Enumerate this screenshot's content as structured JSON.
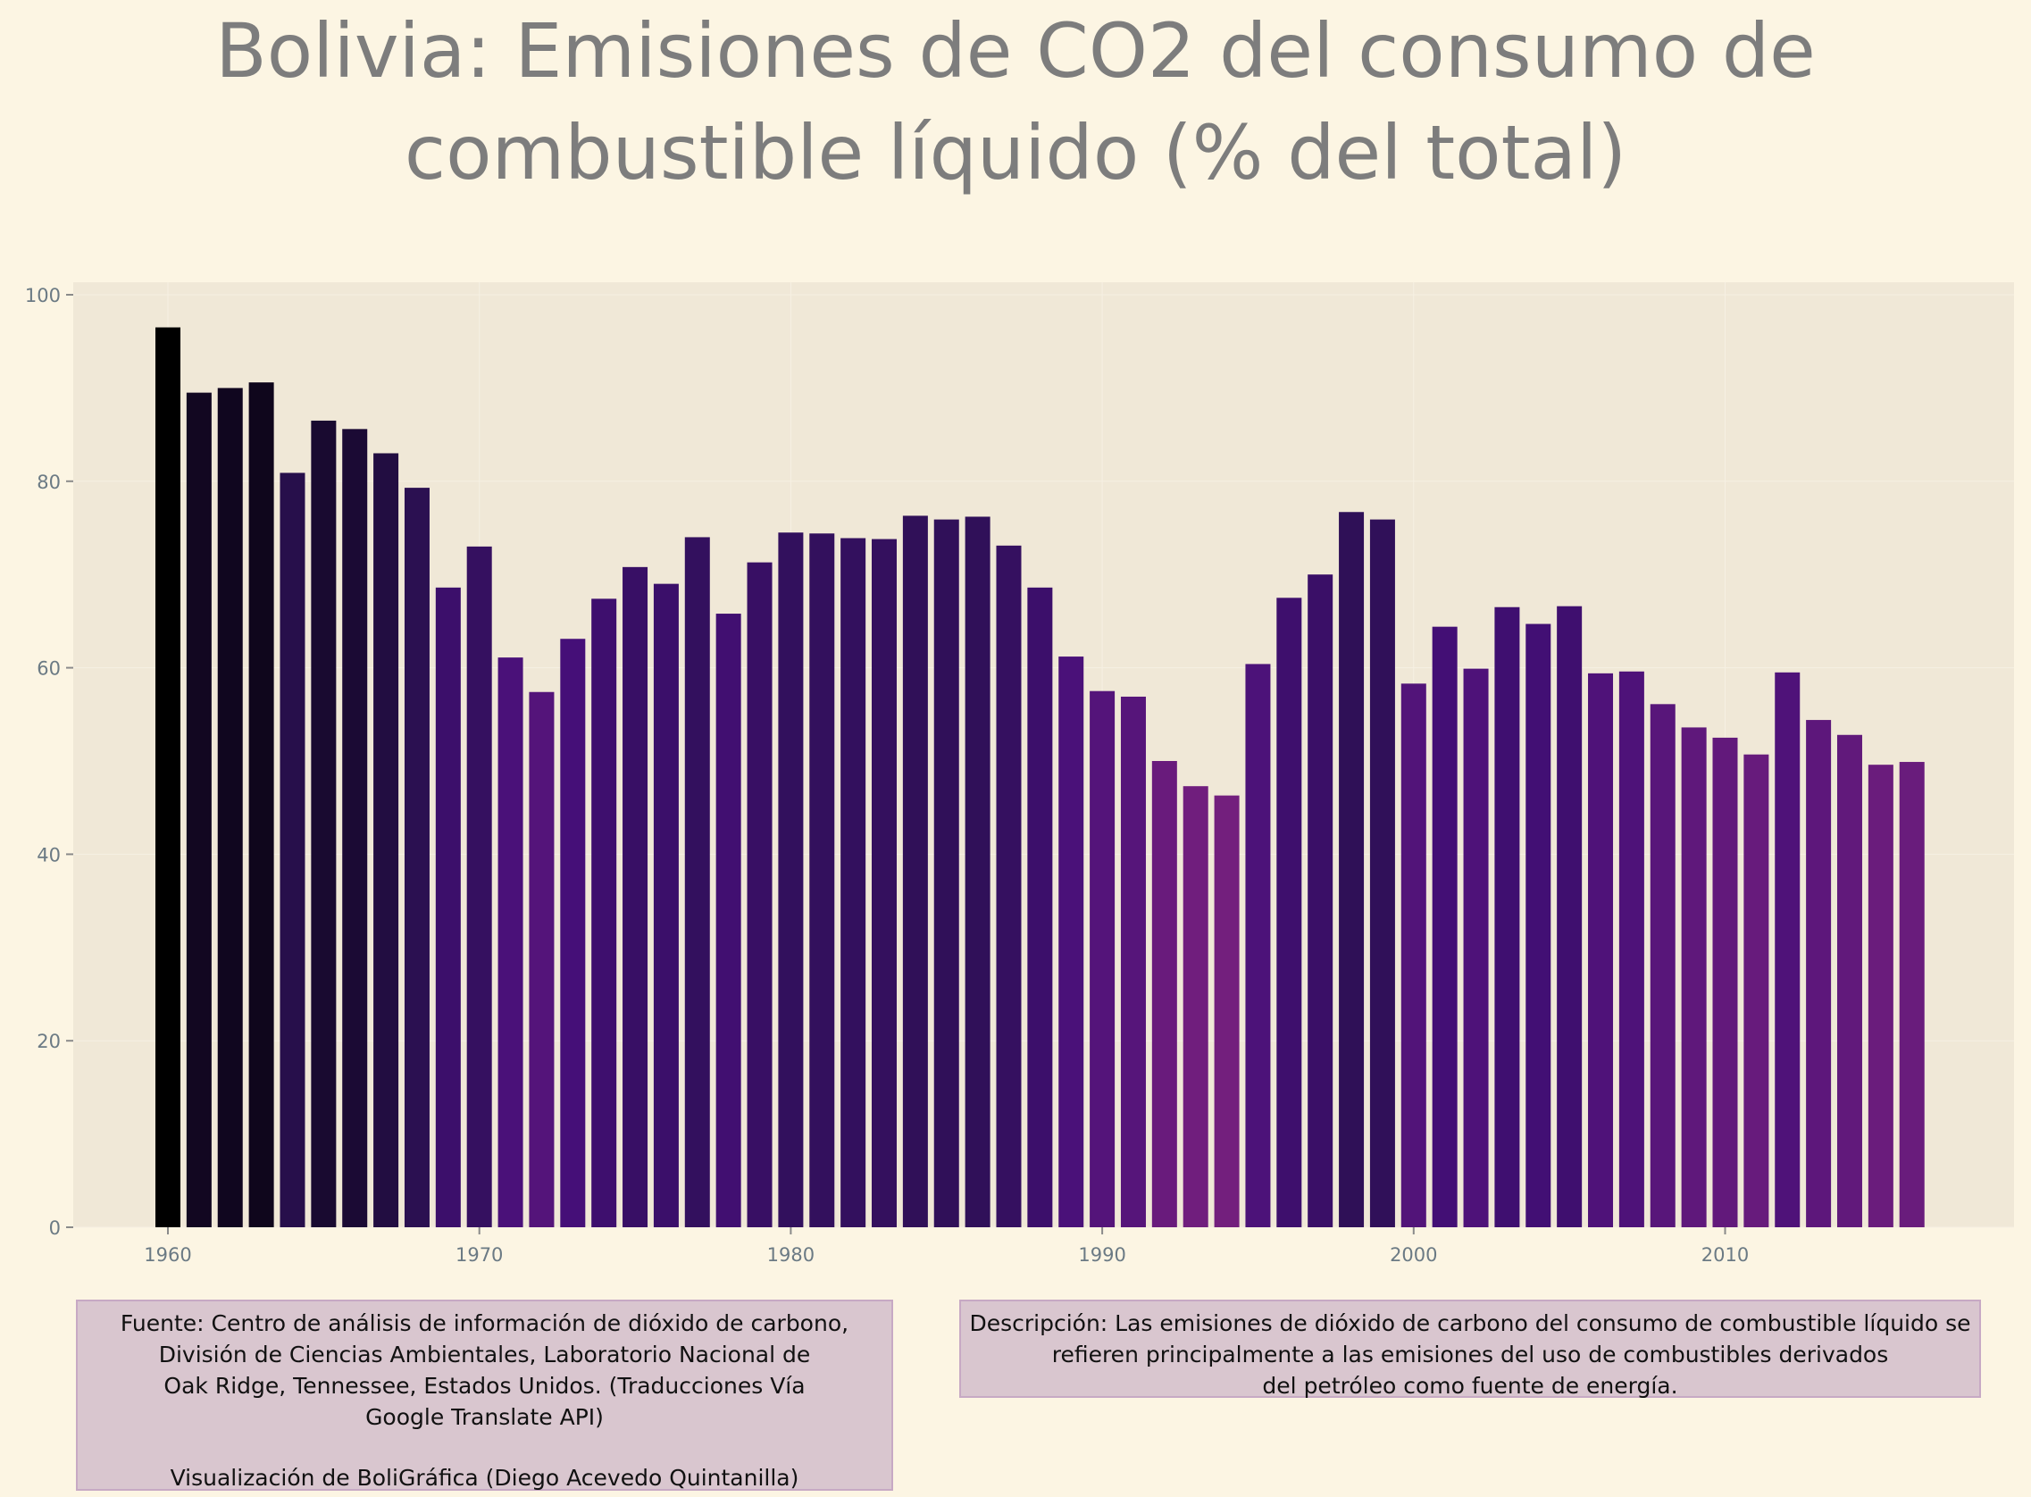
{
  "title": {
    "line1": "Bolivia:  Emisiones de CO2 del consumo de",
    "line2": "combustible líquido (% del total)"
  },
  "colors": {
    "background": "#fcf5e3",
    "panel": "#f0e8d7",
    "title": "#7d7d7d",
    "axis_text": "#6b7a84",
    "note_fill": "#d9c6cf",
    "note_border": "#c7a9c4",
    "bar_dark": "#000000",
    "bar_light": "#731f7d"
  },
  "chart_data": {
    "type": "bar",
    "x": [
      1960,
      1961,
      1962,
      1963,
      1964,
      1965,
      1966,
      1967,
      1968,
      1969,
      1970,
      1971,
      1972,
      1973,
      1974,
      1975,
      1976,
      1977,
      1978,
      1979,
      1980,
      1981,
      1982,
      1983,
      1984,
      1985,
      1986,
      1987,
      1988,
      1989,
      1990,
      1991,
      1992,
      1993,
      1994,
      1995,
      1996,
      1997,
      1998,
      1999,
      2000,
      2001,
      2002,
      2003,
      2004,
      2005,
      2006,
      2007,
      2008,
      2009,
      2010,
      2011,
      2012,
      2013,
      2014,
      2015,
      2016
    ],
    "values": [
      96.5,
      89.5,
      90.0,
      90.6,
      80.9,
      86.5,
      85.6,
      83.0,
      79.3,
      68.6,
      73.0,
      61.1,
      57.4,
      63.1,
      67.4,
      70.8,
      69.0,
      74.0,
      65.8,
      71.3,
      74.5,
      74.4,
      73.9,
      73.8,
      76.3,
      75.9,
      76.2,
      73.1,
      68.6,
      61.2,
      57.5,
      56.9,
      50.0,
      47.3,
      46.3,
      60.4,
      67.5,
      70.0,
      76.7,
      75.9,
      58.3,
      64.4,
      59.9,
      66.5,
      64.7,
      66.6,
      59.4,
      59.6,
      56.1,
      53.6,
      52.5,
      50.7,
      59.5,
      54.4,
      52.8,
      49.6,
      49.9
    ],
    "xlabel": "",
    "ylabel": "",
    "ylim": [
      0,
      100
    ],
    "xlim": [
      1957,
      2019
    ],
    "yticks": [
      "0",
      "20",
      "40",
      "60",
      "80",
      "100"
    ],
    "xticks": [
      "1960",
      "1970",
      "1980",
      "1990",
      "2000",
      "2010"
    ],
    "grid": true,
    "legend": "none"
  },
  "notes": {
    "source_lines": [
      "Fuente: Centro de análisis de información de dióxido de carbono,",
      "División de Ciencias Ambientales, Laboratorio Nacional de",
      "Oak Ridge, Tennessee, Estados Unidos. (Traducciones Vía",
      "Google Translate API)"
    ],
    "credit": "Visualización de BoliGráfica (Diego Acevedo Quintanilla)",
    "description_lines": [
      "Descripción: Las emisiones de dióxido de carbono del consumo de combustible líquido se",
      "refieren principalmente a las emisiones del uso de combustibles derivados",
      "del petróleo como fuente de energía."
    ]
  }
}
